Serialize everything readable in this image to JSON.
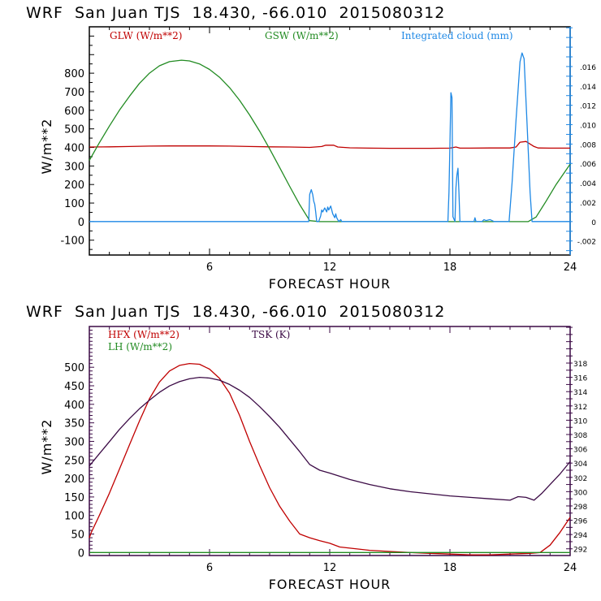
{
  "chart_data": [
    {
      "type": "line",
      "title": "WRF  San Juan TJS  18.430, -66.010  2015080312",
      "xlabel": "FORECAST HOUR",
      "ylabel": "W/m**2",
      "xlim": [
        0,
        24
      ],
      "ylim": [
        -180,
        1050
      ],
      "x_ticks": [
        "6",
        "12",
        "18",
        "24"
      ],
      "x_tick_values": [
        6,
        12,
        18,
        24
      ],
      "y_ticks": [
        "-100",
        "0",
        "100",
        "200",
        "300",
        "400",
        "500",
        "600",
        "700",
        "800"
      ],
      "y_tick_values": [
        -100,
        0,
        100,
        200,
        300,
        400,
        500,
        600,
        700,
        800
      ],
      "y2_ticks": [
        "-.002",
        "0",
        ".002",
        ".004",
        ".006",
        ".008",
        ".010",
        ".012",
        ".014",
        ".016"
      ],
      "y2_tick_values": [
        -0.002,
        0,
        0.002,
        0.004,
        0.006,
        0.008,
        0.01,
        0.012,
        0.014,
        0.016
      ],
      "y2lim": [
        -0.00345,
        0.0201
      ],
      "axis_color": "#1e88e5",
      "series": [
        {
          "name": "GLW (W/m**2)",
          "color": "#c00000",
          "axis": "left",
          "x": [
            0,
            1,
            2,
            3,
            4,
            5,
            6,
            7,
            8,
            9,
            10,
            11,
            11.6,
            11.8,
            12.2,
            12.4,
            13,
            14,
            15,
            16,
            17,
            18,
            18.3,
            18.5,
            19,
            20,
            21,
            21.3,
            21.5,
            21.8,
            22.2,
            22.4,
            23,
            24
          ],
          "y": [
            402,
            403,
            405,
            407,
            408,
            408,
            408,
            407,
            405,
            403,
            402,
            400,
            405,
            412,
            412,
            402,
            398,
            396,
            395,
            395,
            395,
            396,
            402,
            396,
            396,
            397,
            397,
            402,
            428,
            432,
            405,
            397,
            396,
            396
          ]
        },
        {
          "name": "GSW (W/m**2)",
          "color": "#228b22",
          "axis": "left",
          "x": [
            0,
            0.5,
            1,
            1.5,
            2,
            2.5,
            3,
            3.5,
            4,
            4.6,
            5,
            5.5,
            6,
            6.5,
            7,
            7.5,
            8,
            8.5,
            9,
            9.5,
            10,
            10.5,
            11,
            11.5,
            21.9,
            22.3,
            22.8,
            23.3,
            24
          ],
          "y": [
            330,
            425,
            515,
            600,
            675,
            745,
            800,
            840,
            862,
            870,
            866,
            850,
            820,
            778,
            722,
            654,
            575,
            487,
            392,
            292,
            190,
            92,
            5,
            0,
            0,
            25,
            110,
            200,
            310
          ]
        },
        {
          "name": "Integrated cloud (mm)",
          "color": "#1e88e5",
          "axis": "right",
          "x": [
            0,
            10.95,
            11.0,
            11.08,
            11.15,
            11.2,
            11.25,
            11.3,
            11.35,
            11.45,
            11.55,
            11.6,
            11.65,
            11.75,
            11.85,
            11.9,
            11.95,
            12.05,
            12.15,
            12.25,
            12.3,
            12.35,
            12.45,
            12.55,
            12.6,
            17.9,
            17.95,
            18.0,
            18.05,
            18.1,
            18.15,
            18.25,
            18.3,
            18.35,
            18.4,
            18.45,
            18.5,
            19.2,
            19.25,
            19.3,
            19.6,
            19.7,
            19.8,
            20.0,
            20.1,
            20.2,
            20.95,
            21.1,
            21.3,
            21.5,
            21.6,
            21.7,
            21.85,
            22.0,
            22.1,
            24
          ],
          "y": [
            0,
            0,
            0.0028,
            0.0033,
            0.0028,
            0.0021,
            0.0018,
            0.001,
            0,
            0,
            0.0006,
            0.0012,
            0.001,
            0.0014,
            0.001,
            0.0015,
            0.0012,
            0.0016,
            0.0008,
            0.0004,
            0.0008,
            0.0004,
            0,
            0.0002,
            0,
            0,
            0.003,
            0.008,
            0.0133,
            0.0128,
            0.0005,
            0,
            0.0035,
            0.0048,
            0.0055,
            0.003,
            0,
            0,
            0.0004,
            0,
            0,
            0.0002,
            0.0001,
            0.0002,
            0.0001,
            0,
            0,
            0.004,
            0.0105,
            0.0165,
            0.0174,
            0.0168,
            0.01,
            0.003,
            0,
            0
          ]
        }
      ],
      "legend": [
        "GLW (W/m**2)",
        "GSW (W/m**2)",
        "Integrated cloud (mm)"
      ],
      "legend_placement": "top"
    },
    {
      "type": "line",
      "title": "WRF  San Juan TJS  18.430, -66.010  2015080312",
      "xlabel": "FORECAST HOUR",
      "ylabel": "W/m**2",
      "xlim": [
        0,
        24
      ],
      "ylim": [
        -8,
        610
      ],
      "x_ticks": [
        "6",
        "12",
        "18",
        "24"
      ],
      "x_tick_values": [
        6,
        12,
        18,
        24
      ],
      "y_ticks": [
        "0",
        "50",
        "100",
        "150",
        "200",
        "250",
        "300",
        "350",
        "400",
        "450",
        "500"
      ],
      "y_tick_values": [
        0,
        50,
        100,
        150,
        200,
        250,
        300,
        350,
        400,
        450,
        500
      ],
      "y2_ticks": [
        "292",
        "294",
        "296",
        "298",
        "300",
        "302",
        "304",
        "306",
        "308",
        "310",
        "312",
        "314",
        "316",
        "318"
      ],
      "y2_tick_values": [
        292,
        294,
        296,
        298,
        300,
        302,
        304,
        306,
        308,
        310,
        312,
        314,
        316,
        318
      ],
      "y2lim": [
        291.06,
        323.12
      ],
      "axis_color": "#3b0a45",
      "series": [
        {
          "name": "HFX (W/m**2)",
          "color": "#c00000",
          "axis": "left",
          "x": [
            0,
            0.1,
            0.5,
            1,
            1.5,
            2,
            2.5,
            3,
            3.5,
            4,
            4.5,
            5,
            5.5,
            6,
            6.5,
            7,
            7.5,
            8,
            8.5,
            9,
            9.5,
            10,
            10.5,
            11,
            11.5,
            12,
            12.5,
            13,
            14,
            15,
            16,
            17,
            18,
            19,
            20,
            21,
            22,
            22.5,
            23,
            23.5,
            24
          ],
          "y": [
            40,
            55,
            100,
            160,
            225,
            290,
            355,
            415,
            460,
            490,
            505,
            510,
            508,
            495,
            470,
            430,
            370,
            300,
            235,
            175,
            125,
            85,
            50,
            40,
            32,
            25,
            15,
            12,
            6,
            3,
            0,
            -2,
            -4,
            -6,
            -6,
            -4,
            -2,
            0,
            20,
            55,
            95
          ]
        },
        {
          "name": "LH (W/m**2)",
          "color": "#228b22",
          "axis": "left",
          "x": [
            0,
            24
          ],
          "y": [
            0,
            0
          ]
        },
        {
          "name": "TSK (K)",
          "color": "#3b0a45",
          "axis": "right",
          "x": [
            0,
            0.5,
            1,
            1.5,
            2,
            2.5,
            3,
            3.5,
            4,
            4.5,
            5,
            5.5,
            6,
            6.5,
            7,
            7.5,
            8,
            8.5,
            9,
            9.5,
            10,
            10.5,
            11,
            11.5,
            12,
            13,
            14,
            15,
            16,
            17,
            18,
            19,
            20,
            21,
            21.4,
            21.8,
            22.2,
            22.6,
            23,
            23.5,
            24
          ],
          "y": [
            303.6,
            305.3,
            307.0,
            308.7,
            310.2,
            311.6,
            312.8,
            313.9,
            314.8,
            315.4,
            315.8,
            316.0,
            315.9,
            315.6,
            315.0,
            314.2,
            313.2,
            311.9,
            310.5,
            309.0,
            307.3,
            305.6,
            303.8,
            303.0,
            302.6,
            301.7,
            301.0,
            300.4,
            300.0,
            299.7,
            299.4,
            299.2,
            299.0,
            298.8,
            299.3,
            299.2,
            298.8,
            299.8,
            301.0,
            302.5,
            304.2
          ]
        }
      ],
      "legend": [
        "HFX (W/m**2)",
        "LH (W/m**2)",
        "TSK (K)"
      ],
      "legend_placement": "top-left"
    }
  ]
}
